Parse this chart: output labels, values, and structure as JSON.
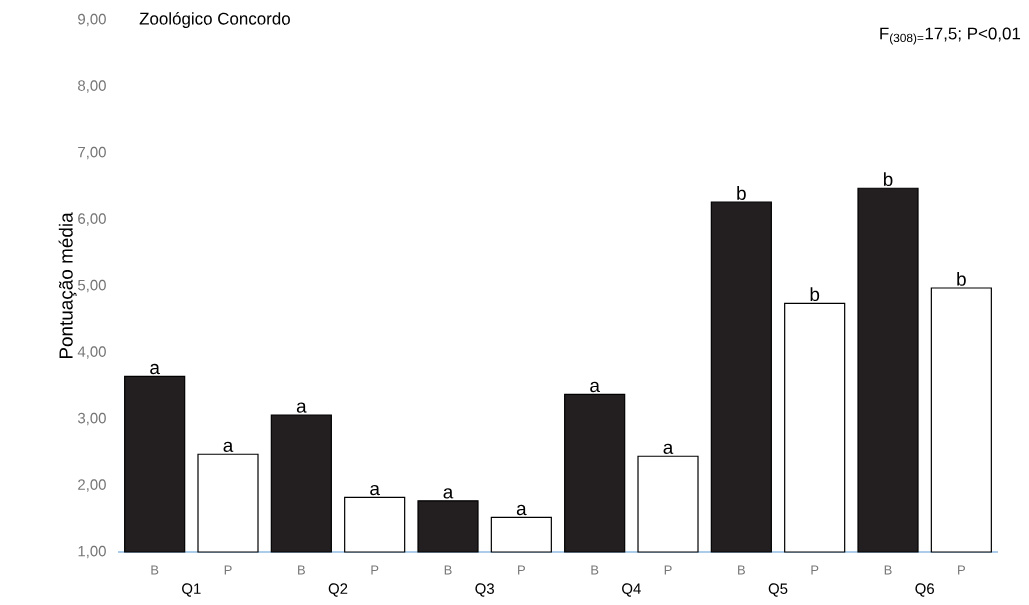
{
  "chart_data": {
    "type": "bar",
    "title": "Zoológico Concordo",
    "ylabel": "Pontuação média",
    "categories": [
      "B",
      "P",
      "B",
      "P",
      "B",
      "P",
      "B",
      "P",
      "B",
      "P",
      "B",
      "P"
    ],
    "values": [
      3.64,
      2.47,
      3.06,
      1.82,
      1.77,
      1.52,
      3.37,
      2.44,
      6.26,
      4.74,
      6.47,
      4.97
    ],
    "colors": [
      "#231f20",
      "#ffffff",
      "#231f20",
      "#ffffff",
      "#231f20",
      "#ffffff",
      "#231f20",
      "#ffffff",
      "#231f20",
      "#ffffff",
      "#231f20",
      "#ffffff"
    ],
    "value_labels": [
      "a",
      "a",
      "a",
      "a",
      "a",
      "a",
      "a",
      "a",
      "b",
      "b",
      "b",
      "b"
    ],
    "ylim": [
      1,
      9
    ],
    "yticks": [
      {
        "value": 1,
        "label": "1,00"
      },
      {
        "value": 2,
        "label": "2,00"
      },
      {
        "value": 3,
        "label": "3,00"
      },
      {
        "value": 4,
        "label": "4,00"
      },
      {
        "value": 5,
        "label": "5,00"
      },
      {
        "value": 6,
        "label": "6,00"
      },
      {
        "value": 7,
        "label": "7,00"
      },
      {
        "value": 8,
        "label": "8,00"
      },
      {
        "value": 9,
        "label": "9,00"
      }
    ],
    "annotations": [
      "F$_{(308)=}$17,5; P<0,01",
      "Q1",
      "Q2",
      "Q3",
      "Q4",
      "Q5",
      "Q6"
    ]
  }
}
